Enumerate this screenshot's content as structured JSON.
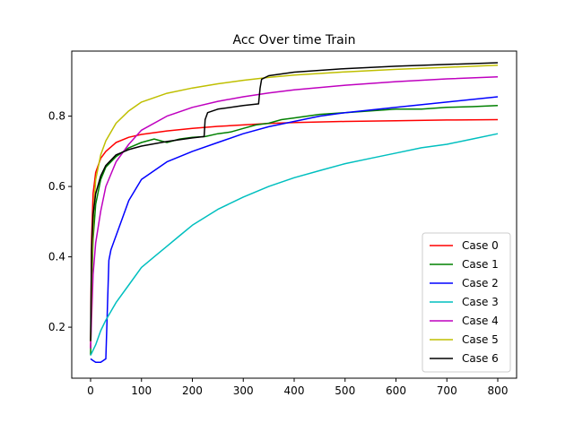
{
  "chart_data": {
    "type": "line",
    "title": "Acc Over time Train",
    "xlabel": "",
    "ylabel": "",
    "xlim": [
      -37,
      837
    ],
    "ylim": [
      0.055,
      0.985
    ],
    "x_ticks": [
      0,
      100,
      200,
      300,
      400,
      500,
      600,
      700,
      800
    ],
    "y_ticks": [
      0.2,
      0.4,
      0.6,
      0.8
    ],
    "x_tick_labels": [
      "0",
      "100",
      "200",
      "300",
      "400",
      "500",
      "600",
      "700",
      "800"
    ],
    "y_tick_labels": [
      "0.2",
      "0.4",
      "0.6",
      "0.8"
    ],
    "grid": false,
    "legend_position": "lower-right",
    "series": [
      {
        "name": "Case 0",
        "color": "#ff0000",
        "x": [
          0,
          2,
          5,
          10,
          20,
          30,
          50,
          75,
          100,
          150,
          200,
          250,
          300,
          350,
          400,
          500,
          600,
          700,
          800
        ],
        "y": [
          0.14,
          0.45,
          0.58,
          0.64,
          0.68,
          0.7,
          0.725,
          0.74,
          0.748,
          0.758,
          0.765,
          0.771,
          0.775,
          0.779,
          0.782,
          0.785,
          0.787,
          0.789,
          0.79
        ]
      },
      {
        "name": "Case 1",
        "color": "#008000",
        "x": [
          0,
          2,
          5,
          10,
          20,
          30,
          50,
          75,
          100,
          125,
          150,
          175,
          200,
          225,
          250,
          275,
          300,
          325,
          350,
          375,
          400,
          450,
          500,
          550,
          600,
          650,
          700,
          750,
          800
        ],
        "y": [
          0.12,
          0.3,
          0.45,
          0.55,
          0.62,
          0.655,
          0.685,
          0.71,
          0.725,
          0.735,
          0.725,
          0.735,
          0.74,
          0.742,
          0.75,
          0.755,
          0.765,
          0.775,
          0.78,
          0.79,
          0.795,
          0.805,
          0.81,
          0.815,
          0.82,
          0.82,
          0.825,
          0.827,
          0.83
        ]
      },
      {
        "name": "Case 2",
        "color": "#0000ff",
        "x": [
          0,
          5,
          10,
          20,
          30,
          33,
          36,
          40,
          50,
          75,
          100,
          150,
          200,
          250,
          300,
          350,
          400,
          450,
          500,
          600,
          700,
          800
        ],
        "y": [
          0.11,
          0.105,
          0.1,
          0.1,
          0.11,
          0.25,
          0.39,
          0.42,
          0.46,
          0.56,
          0.62,
          0.67,
          0.7,
          0.725,
          0.75,
          0.77,
          0.785,
          0.8,
          0.81,
          0.825,
          0.84,
          0.855
        ]
      },
      {
        "name": "Case 3",
        "color": "#00bfbf",
        "x": [
          0,
          10,
          20,
          30,
          50,
          75,
          100,
          125,
          150,
          175,
          200,
          250,
          300,
          350,
          400,
          450,
          500,
          550,
          600,
          650,
          700,
          750,
          800
        ],
        "y": [
          0.12,
          0.15,
          0.19,
          0.22,
          0.27,
          0.32,
          0.37,
          0.4,
          0.43,
          0.46,
          0.49,
          0.535,
          0.57,
          0.6,
          0.625,
          0.645,
          0.665,
          0.68,
          0.695,
          0.71,
          0.72,
          0.735,
          0.75
        ]
      },
      {
        "name": "Case 4",
        "color": "#bf00bf",
        "x": [
          0,
          5,
          10,
          20,
          30,
          50,
          75,
          100,
          150,
          200,
          250,
          300,
          350,
          400,
          500,
          600,
          700,
          800
        ],
        "y": [
          0.14,
          0.35,
          0.44,
          0.53,
          0.6,
          0.67,
          0.72,
          0.76,
          0.8,
          0.825,
          0.842,
          0.855,
          0.866,
          0.875,
          0.888,
          0.898,
          0.906,
          0.912
        ]
      },
      {
        "name": "Case 5",
        "color": "#bfbf00",
        "x": [
          0,
          3,
          6,
          10,
          20,
          30,
          50,
          75,
          100,
          150,
          200,
          250,
          300,
          350,
          400,
          500,
          600,
          700,
          800
        ],
        "y": [
          0.16,
          0.4,
          0.53,
          0.62,
          0.69,
          0.73,
          0.78,
          0.815,
          0.84,
          0.865,
          0.88,
          0.892,
          0.902,
          0.91,
          0.917,
          0.926,
          0.933,
          0.939,
          0.945
        ]
      },
      {
        "name": "Case 6",
        "color": "#000000",
        "x": [
          0,
          2,
          5,
          10,
          20,
          30,
          50,
          75,
          100,
          150,
          200,
          223,
          225,
          230,
          250,
          300,
          330,
          333,
          336,
          350,
          400,
          500,
          600,
          700,
          800
        ],
        "y": [
          0.16,
          0.42,
          0.52,
          0.58,
          0.63,
          0.66,
          0.69,
          0.705,
          0.715,
          0.728,
          0.738,
          0.742,
          0.79,
          0.81,
          0.82,
          0.83,
          0.835,
          0.88,
          0.905,
          0.915,
          0.925,
          0.935,
          0.942,
          0.947,
          0.952
        ]
      }
    ]
  }
}
